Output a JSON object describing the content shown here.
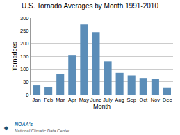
{
  "chart_data": {
    "type": "bar",
    "title": "U.S. Tornado Averages by Month 1991-2010",
    "xlabel": "Month",
    "ylabel": "Tornadoes",
    "categories": [
      "Jan",
      "Feb",
      "Mar",
      "Apr",
      "May",
      "June",
      "July",
      "Aug",
      "Sep",
      "Oct",
      "Nov",
      "Dec"
    ],
    "values": [
      38,
      30,
      80,
      155,
      275,
      245,
      130,
      85,
      75,
      65,
      62,
      28
    ],
    "color": "#5b8db8",
    "ylim": [
      0,
      300
    ],
    "yticks": [
      0,
      50,
      100,
      150,
      200,
      250,
      300
    ],
    "grid": true,
    "annotations": [
      "●",
      "NOAA's",
      "National Climatic Data Center"
    ]
  }
}
